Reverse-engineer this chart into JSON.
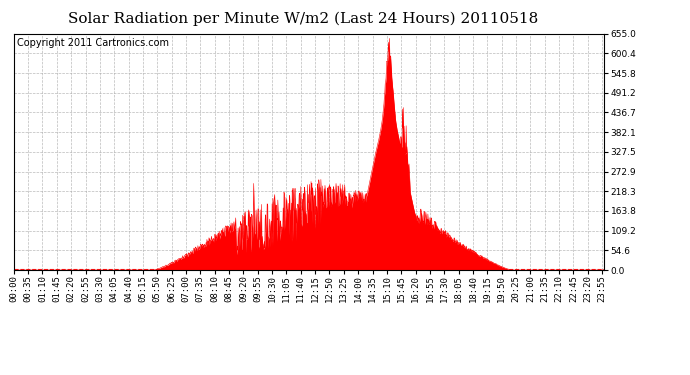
{
  "title": "Solar Radiation per Minute W/m2 (Last 24 Hours) 20110518",
  "copyright": "Copyright 2011 Cartronics.com",
  "y_max": 655.0,
  "y_min": 0.0,
  "y_ticks": [
    0.0,
    54.6,
    109.2,
    163.8,
    218.3,
    272.9,
    327.5,
    382.1,
    436.7,
    491.2,
    545.8,
    600.4,
    655.0
  ],
  "fill_color": "#FF0000",
  "line_color": "#FF0000",
  "bg_color": "#FFFFFF",
  "grid_color": "#AAAAAA",
  "dashed_line_color": "#FF0000",
  "title_fontsize": 11,
  "copyright_fontsize": 7,
  "tick_fontsize": 6.5,
  "total_minutes": 1440,
  "tick_step_minutes": 35
}
